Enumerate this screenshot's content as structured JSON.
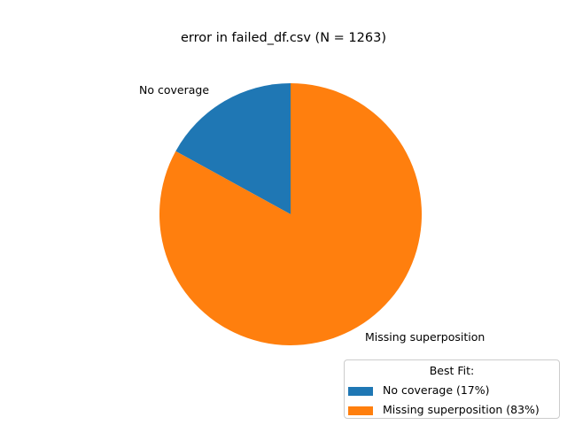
{
  "chart_data": {
    "type": "pie",
    "title": "error in failed_df.csv (N = 1263)",
    "slices": [
      {
        "label": "No coverage",
        "percent": 17,
        "color": "#1f77b4",
        "legend_label": "No coverage (17%)"
      },
      {
        "label": "Missing superposition",
        "percent": 83,
        "color": "#ff7f0e",
        "legend_label": "Missing superposition (83%)"
      }
    ],
    "start_angle_deg": 90,
    "direction": "counterclockwise",
    "legend": {
      "title": "Best Fit:",
      "placement": "lower-right"
    }
  }
}
